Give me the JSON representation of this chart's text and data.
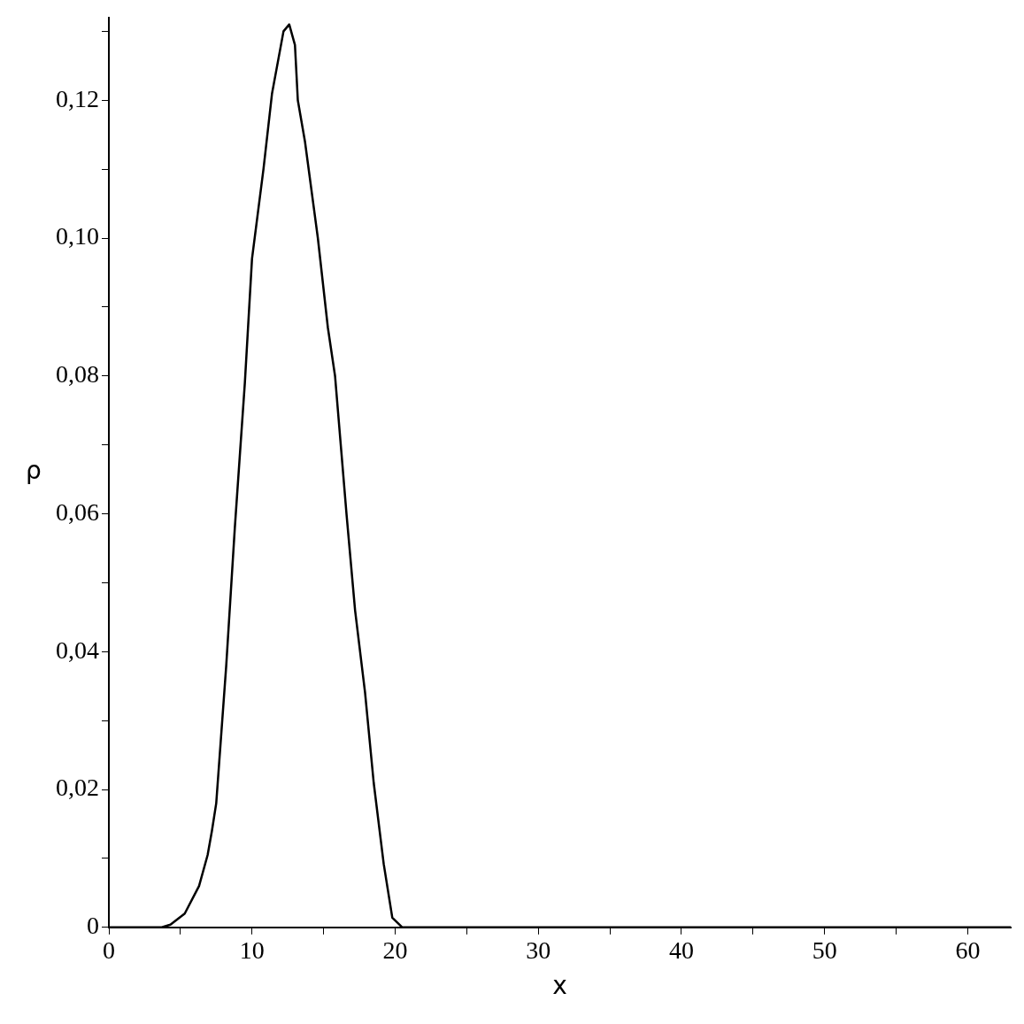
{
  "chart_data": {
    "type": "line",
    "xlabel": "x",
    "ylabel": "ρ",
    "xlim": [
      0,
      63
    ],
    "ylim": [
      0,
      0.132
    ],
    "xticks": [
      0,
      {
        "value": 5,
        "label": null
      },
      10,
      {
        "value": 15,
        "label": null
      },
      20,
      {
        "value": 25,
        "label": null
      },
      30,
      {
        "value": 35,
        "label": null
      },
      40,
      {
        "value": 45,
        "label": null
      },
      50,
      {
        "value": 55,
        "label": null
      },
      60
    ],
    "yticks": [
      {
        "value": 0,
        "label": "0"
      },
      {
        "value": 0.01,
        "label": null
      },
      {
        "value": 0.02,
        "label": "0,02"
      },
      {
        "value": 0.03,
        "label": null
      },
      {
        "value": 0.04,
        "label": "0,04"
      },
      {
        "value": 0.05,
        "label": null
      },
      {
        "value": 0.06,
        "label": "0,06"
      },
      {
        "value": 0.07,
        "label": null
      },
      {
        "value": 0.08,
        "label": "0,08"
      },
      {
        "value": 0.09,
        "label": null
      },
      {
        "value": 0.1,
        "label": "0,10"
      },
      {
        "value": 0.11,
        "label": null
      },
      {
        "value": 0.12,
        "label": "0,12"
      },
      {
        "value": 0.13,
        "label": null
      }
    ],
    "series": [
      {
        "color": "#000000",
        "x": [
          0,
          3.7,
          4.3,
          5.3,
          6.3,
          6.9,
          7.2,
          7.5,
          8.2,
          8.8,
          9.5,
          10.0,
          10.8,
          11.4,
          12.2,
          12.6,
          13.0,
          13.2,
          13.7,
          14.6,
          15.3,
          15.8,
          16.6,
          17.2,
          17.9,
          18.5,
          19.2,
          19.8,
          20.5,
          63
        ],
        "values": [
          0,
          0,
          0.0004,
          0.002,
          0.006,
          0.0105,
          0.014,
          0.018,
          0.038,
          0.058,
          0.079,
          0.097,
          0.11,
          0.121,
          0.13,
          0.131,
          0.128,
          0.12,
          0.114,
          0.1,
          0.087,
          0.08,
          0.06,
          0.046,
          0.034,
          0.021,
          0.0092,
          0.0014,
          0,
          0
        ]
      }
    ]
  }
}
